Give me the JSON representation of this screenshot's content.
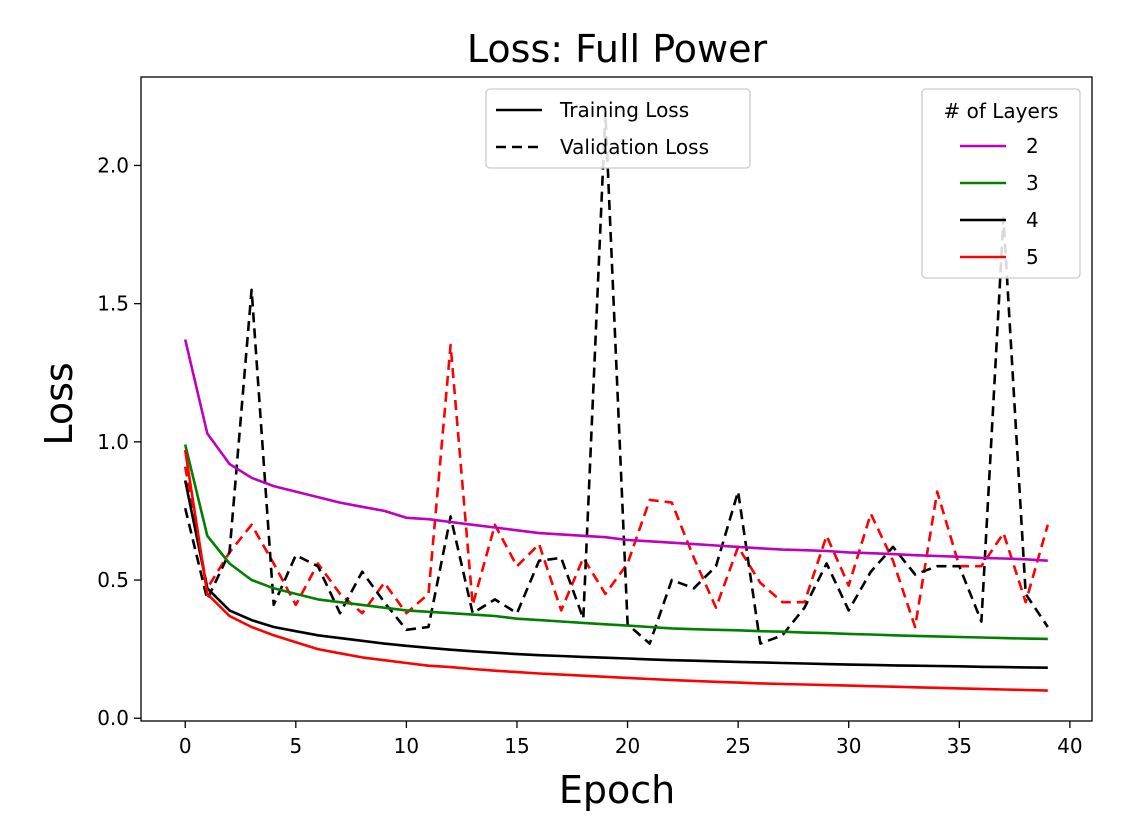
{
  "chart_data": {
    "type": "line",
    "title": "Loss: Full Power",
    "xlabel": "Epoch",
    "ylabel": "Loss",
    "xlim": [
      -2,
      41
    ],
    "ylim": [
      -0.01,
      2.32
    ],
    "xticks": [
      0,
      5,
      10,
      15,
      20,
      25,
      30,
      35,
      40
    ],
    "yticks": [
      0.0,
      0.5,
      1.0,
      1.5,
      2.0
    ],
    "grid": false,
    "style_legend": {
      "placement": "top-center",
      "entries": [
        {
          "label": "Training Loss",
          "dash": "solid"
        },
        {
          "label": "Validation Loss",
          "dash": "dashed"
        }
      ]
    },
    "layers_legend": {
      "placement": "top-right",
      "title": "# of Layers",
      "entries": [
        {
          "label": "2",
          "color": "#bf00bf"
        },
        {
          "label": "3",
          "color": "#008000"
        },
        {
          "label": "4",
          "color": "#000000"
        },
        {
          "label": "5",
          "color": "#ff0000"
        }
      ]
    },
    "x": [
      0,
      1,
      2,
      3,
      4,
      5,
      6,
      7,
      8,
      9,
      10,
      11,
      12,
      13,
      14,
      15,
      16,
      17,
      18,
      19,
      20,
      21,
      22,
      23,
      24,
      25,
      26,
      27,
      28,
      29,
      30,
      31,
      32,
      33,
      34,
      35,
      36,
      37,
      38,
      39
    ],
    "series": [
      {
        "kind": "validation",
        "color": "#ff0000",
        "values": [
          0.91,
          0.47,
          0.6,
          0.7,
          0.56,
          0.41,
          0.56,
          0.45,
          0.38,
          0.49,
          0.38,
          0.45,
          1.35,
          0.41,
          0.7,
          0.55,
          0.63,
          0.39,
          0.58,
          0.45,
          0.56,
          0.79,
          0.78,
          0.58,
          0.4,
          0.62,
          0.49,
          0.42,
          0.42,
          0.66,
          0.48,
          0.74,
          0.57,
          0.33,
          0.82,
          0.55,
          0.55,
          0.67,
          0.42,
          0.7
        ]
      },
      {
        "kind": "validation",
        "color": "#000000",
        "values": [
          0.76,
          0.43,
          0.6,
          1.55,
          0.41,
          0.59,
          0.55,
          0.38,
          0.53,
          0.42,
          0.32,
          0.33,
          0.73,
          0.38,
          0.43,
          0.38,
          0.57,
          0.58,
          0.36,
          2.19,
          0.34,
          0.27,
          0.5,
          0.47,
          0.55,
          0.82,
          0.27,
          0.3,
          0.4,
          0.56,
          0.39,
          0.53,
          0.62,
          0.52,
          0.55,
          0.55,
          0.35,
          1.81,
          0.45,
          0.33
        ]
      },
      {
        "kind": "training",
        "color": "#bf00bf",
        "values": [
          1.37,
          1.03,
          0.92,
          0.87,
          0.84,
          0.82,
          0.8,
          0.78,
          0.765,
          0.75,
          0.725,
          0.72,
          0.71,
          0.7,
          0.69,
          0.68,
          0.67,
          0.665,
          0.66,
          0.655,
          0.645,
          0.64,
          0.635,
          0.63,
          0.625,
          0.62,
          0.615,
          0.61,
          0.608,
          0.605,
          0.6,
          0.597,
          0.594,
          0.59,
          0.587,
          0.584,
          0.58,
          0.578,
          0.575,
          0.57
        ]
      },
      {
        "kind": "training",
        "color": "#008000",
        "values": [
          0.99,
          0.66,
          0.56,
          0.5,
          0.47,
          0.45,
          0.43,
          0.42,
          0.41,
          0.4,
          0.39,
          0.385,
          0.38,
          0.375,
          0.37,
          0.36,
          0.355,
          0.35,
          0.345,
          0.34,
          0.335,
          0.33,
          0.325,
          0.322,
          0.32,
          0.318,
          0.315,
          0.313,
          0.31,
          0.308,
          0.305,
          0.303,
          0.3,
          0.298,
          0.296,
          0.294,
          0.292,
          0.29,
          0.288,
          0.287
        ]
      },
      {
        "kind": "training",
        "color": "#000000",
        "values": [
          0.86,
          0.47,
          0.39,
          0.355,
          0.33,
          0.315,
          0.3,
          0.29,
          0.28,
          0.27,
          0.262,
          0.255,
          0.248,
          0.242,
          0.237,
          0.232,
          0.228,
          0.225,
          0.222,
          0.219,
          0.216,
          0.213,
          0.21,
          0.208,
          0.206,
          0.204,
          0.202,
          0.2,
          0.198,
          0.196,
          0.194,
          0.193,
          0.191,
          0.19,
          0.189,
          0.188,
          0.186,
          0.185,
          0.184,
          0.183
        ]
      },
      {
        "kind": "training",
        "color": "#ff0000",
        "values": [
          0.97,
          0.45,
          0.37,
          0.33,
          0.3,
          0.275,
          0.25,
          0.235,
          0.22,
          0.21,
          0.2,
          0.19,
          0.185,
          0.178,
          0.172,
          0.167,
          0.162,
          0.158,
          0.154,
          0.15,
          0.146,
          0.142,
          0.138,
          0.135,
          0.132,
          0.129,
          0.126,
          0.124,
          0.122,
          0.12,
          0.118,
          0.116,
          0.114,
          0.112,
          0.11,
          0.108,
          0.106,
          0.104,
          0.102,
          0.1
        ]
      }
    ]
  }
}
